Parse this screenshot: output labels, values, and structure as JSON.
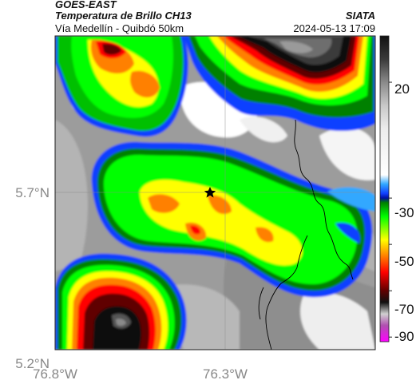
{
  "header": {
    "source": "GOES-EAST",
    "product": "Temperatura de Brillo CH13",
    "route": "Vía Medellín - Quibdó 50km",
    "org": "SIATA",
    "datetime": "2024-05-13 17:09"
  },
  "axes": {
    "lat_labels": [
      "5.7°N",
      "5.2°N"
    ],
    "lon_labels": [
      "76.8°W",
      "76.3°W"
    ]
  },
  "colorbar": {
    "tick_labels": [
      "20",
      "-30",
      "-50",
      "-70",
      "-90"
    ],
    "stops": [
      {
        "v": 40,
        "c": "#111111"
      },
      {
        "v": 30,
        "c": "#3a3a3a"
      },
      {
        "v": 20,
        "c": "#8a8a8a"
      },
      {
        "v": 10,
        "c": "#c8c8c8"
      },
      {
        "v": 0,
        "c": "#ececec"
      },
      {
        "v": -20,
        "c": "#ffffff"
      },
      {
        "v": -24,
        "c": "#30a8ff"
      },
      {
        "v": -28,
        "c": "#1040ff"
      },
      {
        "v": -30,
        "c": "#0010a0"
      },
      {
        "v": -32,
        "c": "#008000"
      },
      {
        "v": -38,
        "c": "#00ff00"
      },
      {
        "v": -48,
        "c": "#ffff00"
      },
      {
        "v": -55,
        "c": "#ff8000"
      },
      {
        "v": -62,
        "c": "#ff0000"
      },
      {
        "v": -70,
        "c": "#600000"
      },
      {
        "v": -75,
        "c": "#101010"
      },
      {
        "v": -80,
        "c": "#d0d0d0"
      },
      {
        "v": -85,
        "c": "#b050b0"
      },
      {
        "v": -92,
        "c": "#ff00ff"
      }
    ]
  },
  "colors": {
    "cold_cloud_green": "#00e000",
    "cold_cloud_yellow": "#f0ff00",
    "deep_convection_red": "#c00000",
    "outline_blue": "#1040ff",
    "cirrus_white": "#ffffff",
    "warm_gray": "#a0a0a0"
  },
  "marker": {
    "icon": "star-icon"
  }
}
